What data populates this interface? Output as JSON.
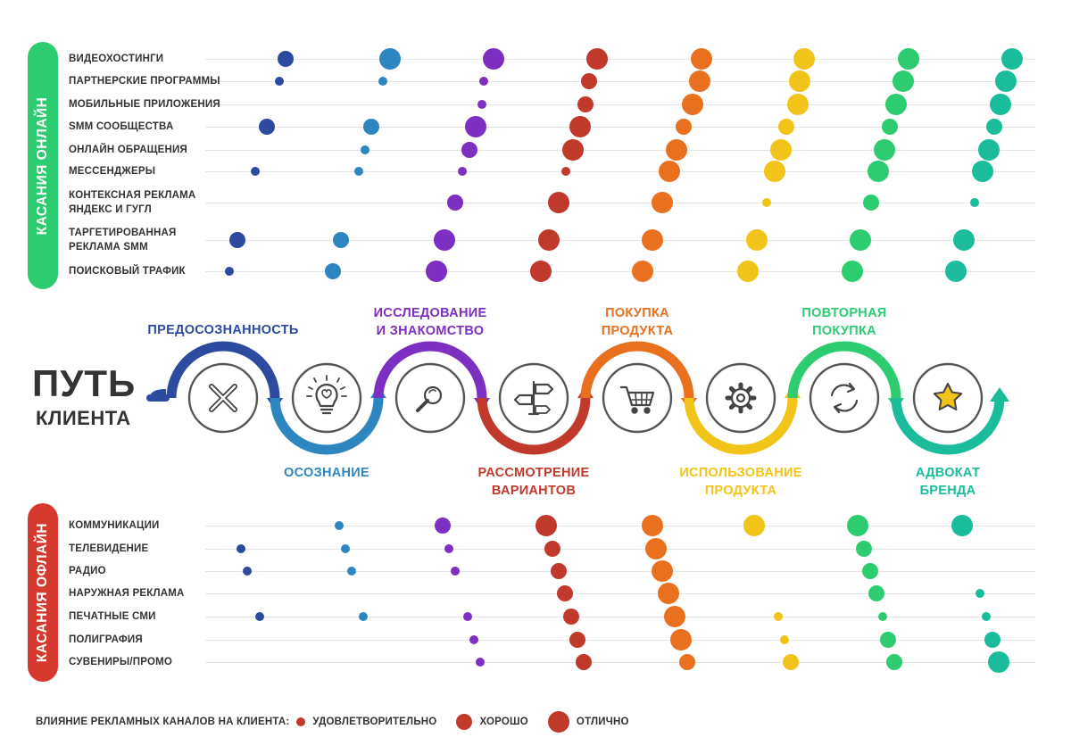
{
  "title": {
    "line1": "ПУТЬ",
    "line2": "КЛИЕНТА"
  },
  "online": {
    "label": "КАСАНИЯ ОНЛАЙН",
    "color": "#2ecc71",
    "rows": [
      {
        "label": "ВИДЕОХОСТИНГИ",
        "values": [
          3,
          4,
          4,
          4,
          4,
          4,
          4,
          4
        ]
      },
      {
        "label": "ПАРТНЕРСКИЕ ПРОГРАММЫ",
        "values": [
          1,
          1,
          1,
          3,
          4,
          4,
          4,
          4
        ]
      },
      {
        "label": "МОБИЛЬНЫЕ ПРИЛОЖЕНИЯ",
        "values": [
          0,
          0,
          1,
          3,
          4,
          4,
          4,
          4
        ]
      },
      {
        "label": "SMM СООБЩЕСТВА",
        "values": [
          3,
          3,
          4,
          4,
          3,
          3,
          3,
          3
        ]
      },
      {
        "label": "ОНЛАЙН ОБРАЩЕНИЯ",
        "values": [
          0,
          1,
          3,
          4,
          4,
          4,
          4,
          4
        ]
      },
      {
        "label": "МЕССЕНДЖЕРЫ",
        "values": [
          1,
          1,
          1,
          1,
          4,
          4,
          4,
          4
        ]
      },
      {
        "label": "КОНТЕКСНАЯ РЕКЛАМА\nЯНДЕКС И ГУГЛ",
        "values": [
          0,
          0,
          3,
          4,
          4,
          1,
          3,
          1
        ]
      },
      {
        "label": "ТАРГЕТИРОВАННАЯ\nРЕКЛАМА SMM",
        "values": [
          3,
          3,
          4,
          4,
          4,
          4,
          4,
          4
        ]
      },
      {
        "label": "ПОИСКОВЫЙ ТРАФИК",
        "values": [
          1,
          3,
          4,
          4,
          4,
          4,
          4,
          4
        ]
      }
    ]
  },
  "offline": {
    "label": "КАСАНИЯ ОФЛАЙН",
    "color": "#d63a2f",
    "rows": [
      {
        "label": "КОММУНИКАЦИИ",
        "values": [
          0,
          1,
          3,
          4,
          4,
          4,
          4,
          4
        ]
      },
      {
        "label": "ТЕЛЕВИДЕНИЕ",
        "values": [
          1,
          1,
          1,
          3,
          4,
          0,
          3,
          0
        ]
      },
      {
        "label": "РАДИО",
        "values": [
          1,
          1,
          1,
          3,
          4,
          0,
          3,
          0
        ]
      },
      {
        "label": "НАРУЖНАЯ РЕКЛАМА",
        "values": [
          0,
          0,
          0,
          3,
          4,
          0,
          3,
          1
        ]
      },
      {
        "label": "ПЕЧАТНЫЕ СМИ",
        "values": [
          1,
          1,
          1,
          3,
          4,
          1,
          1,
          1
        ]
      },
      {
        "label": "ПОЛИГРАФИЯ",
        "values": [
          0,
          0,
          1,
          3,
          4,
          1,
          3,
          3
        ]
      },
      {
        "label": "СУВЕНИРЫ/ПРОМО",
        "values": [
          0,
          0,
          1,
          3,
          3,
          3,
          3,
          4
        ]
      }
    ]
  },
  "stages": [
    {
      "label": "ПРЕДОСОЗНАННОСТЬ",
      "color": "#2b4aa0",
      "icon": "close-x-icon"
    },
    {
      "label": "ОСОЗНАНИЕ",
      "color": "#2e86c1",
      "icon": "lightbulb-brain-icon"
    },
    {
      "label": "ИССЛЕДОВАНИЕ\nИ ЗНАКОМСТВО",
      "color": "#7d2fc1",
      "icon": "magnifier-icon"
    },
    {
      "label": "РАССМОТРЕНИЕ\nВАРИАНТОВ",
      "color": "#c0392b",
      "icon": "signpost-icon"
    },
    {
      "label": "ПОКУПКА\nПРОДУКТА",
      "color": "#e8701e",
      "icon": "shopping-cart-icon"
    },
    {
      "label": "ИСПОЛЬЗОВАНИЕ\nПРОДУКТА",
      "color": "#f2c318",
      "icon": "gear-icon"
    },
    {
      "label": "ПОВТОРНАЯ\nПОКУПКА",
      "color": "#2ecc71",
      "icon": "refresh-arrows-icon"
    },
    {
      "label": "АДВОКАТ\nБРЕНДА",
      "color": "#1abc9c",
      "icon": "star-icon"
    }
  ],
  "legend": {
    "title": "ВЛИЯНИЕ РЕКЛАМНЫХ КАНАЛОВ НА КЛИЕНТА:",
    "color": "#c0392b",
    "items": [
      {
        "label": "УДОВЛЕТВОРИТЕЛЬНО",
        "level": 1
      },
      {
        "label": "ХОРОШО",
        "level": 3
      },
      {
        "label": "ОТЛИЧНО",
        "level": 4
      }
    ]
  }
}
